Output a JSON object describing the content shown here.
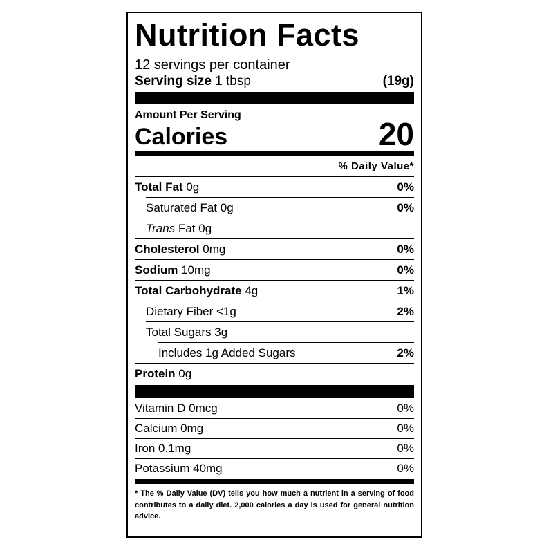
{
  "title": "Nutrition Facts",
  "servings": "12 servings per container",
  "serving_size": {
    "label": "Serving size",
    "amount": "1 tbsp",
    "weight": "(19g)"
  },
  "amount_per_serving": "Amount Per Serving",
  "calories": {
    "label": "Calories",
    "value": "20"
  },
  "daily_value_header": "% Daily Value*",
  "nutrients": [
    {
      "name": "Total Fat",
      "amount": "0g",
      "dv": "0%"
    },
    {
      "name": "Saturated Fat",
      "amount": "0g",
      "dv": "0%"
    },
    {
      "name_italic": "Trans",
      "name": "Fat",
      "amount": "0g"
    },
    {
      "name": "Cholesterol",
      "amount": "0mg",
      "dv": "0%"
    },
    {
      "name": "Sodium",
      "amount": "10mg",
      "dv": "0%"
    },
    {
      "name": "Total Carbohydrate",
      "amount": "4g",
      "dv": "1%"
    },
    {
      "name": "Dietary Fiber",
      "amount": "<1g",
      "dv": "2%"
    },
    {
      "name": "Total Sugars",
      "amount": "3g"
    },
    {
      "name": "Includes 1g Added Sugars",
      "dv": "2%"
    },
    {
      "name": "Protein",
      "amount": "0g"
    }
  ],
  "vitamins": [
    {
      "name": "Vitamin D",
      "amount": "0mcg",
      "dv": "0%"
    },
    {
      "name": "Calcium",
      "amount": "0mg",
      "dv": "0%"
    },
    {
      "name": "Iron",
      "amount": "0.1mg",
      "dv": "0%"
    },
    {
      "name": "Potassium",
      "amount": "40mg",
      "dv": "0%"
    }
  ],
  "footnote": "* The % Daily Value (DV) tells you how much a nutrient in a serving of food contributes to a daily diet. 2,000 calories a day is used for general nutrition advice."
}
